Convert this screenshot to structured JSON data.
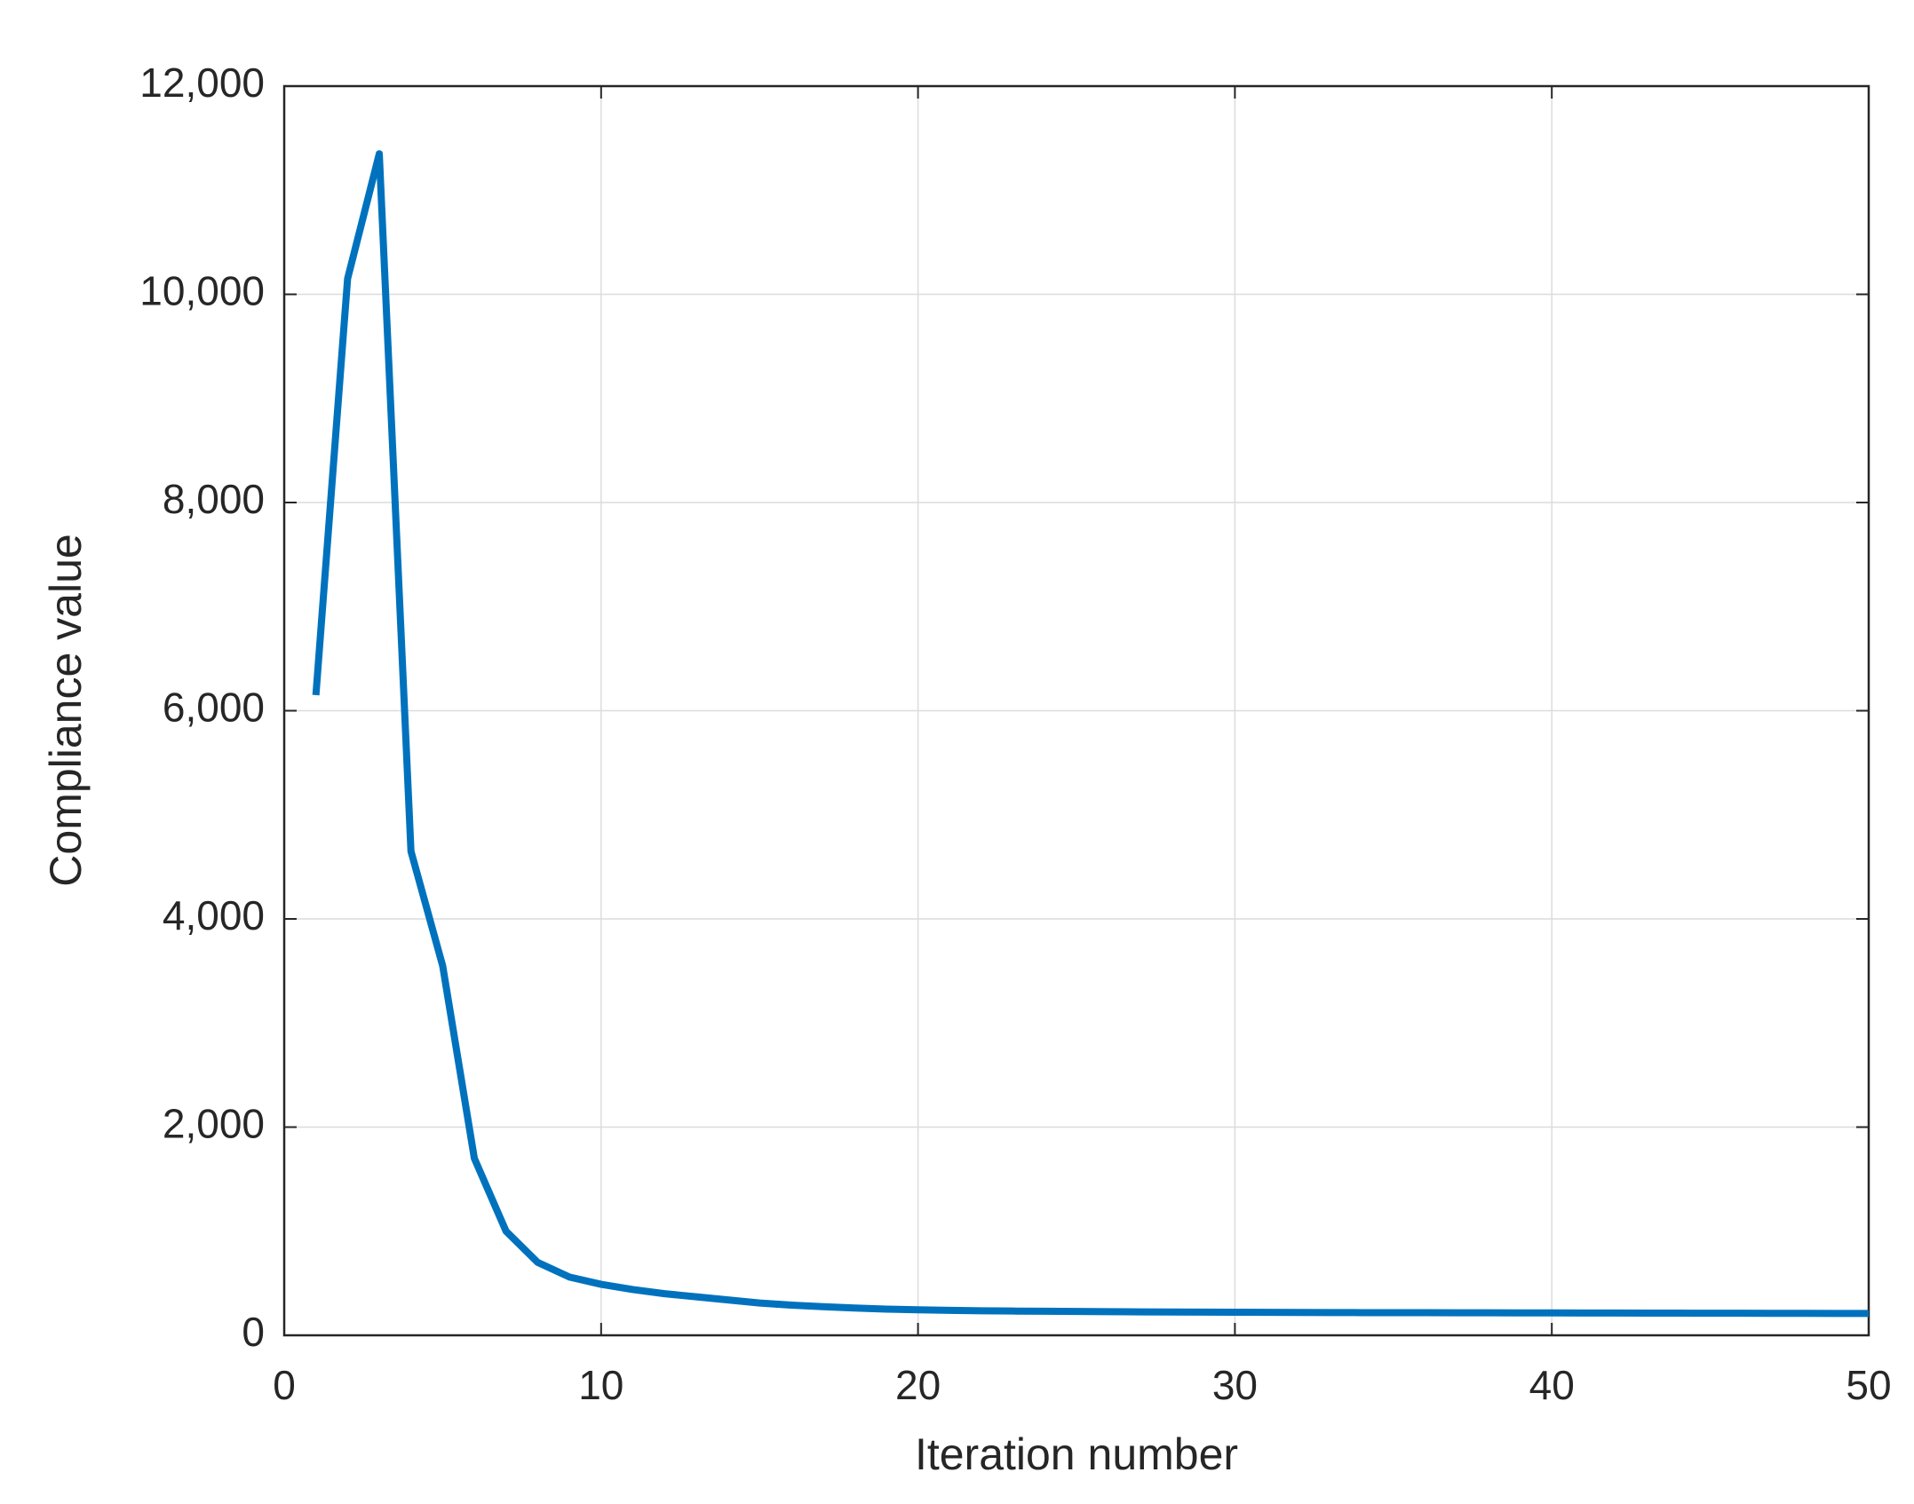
{
  "chart_data": {
    "type": "line",
    "x_label": "Iteration number",
    "y_label": "Compliance value",
    "series": [
      {
        "name": "Compliance",
        "color": "#0072bd",
        "x": [
          1,
          2,
          3,
          4,
          5,
          6,
          7,
          8,
          9,
          10,
          11,
          12,
          13,
          14,
          15,
          16,
          17,
          18,
          19,
          20,
          21,
          22,
          23,
          24,
          25,
          26,
          27,
          28,
          29,
          30,
          31,
          32,
          33,
          34,
          35,
          36,
          37,
          38,
          39,
          40,
          41,
          42,
          43,
          44,
          45,
          46,
          47,
          48,
          49,
          50
        ],
        "values": [
          6150,
          10150,
          11350,
          4650,
          3550,
          1700,
          1000,
          700,
          560,
          490,
          440,
          400,
          370,
          340,
          310,
          290,
          275,
          262,
          252,
          245,
          240,
          236,
          233,
          231,
          229,
          227,
          225,
          224,
          223,
          222,
          221,
          220,
          219,
          218,
          218,
          217,
          216,
          216,
          215,
          215,
          214,
          214,
          213,
          213,
          212,
          212,
          211,
          211,
          210,
          210
        ]
      }
    ],
    "xlim": [
      0,
      50
    ],
    "xticks": [
      0,
      10,
      20,
      30,
      40,
      50
    ],
    "ylim": [
      0,
      12000
    ],
    "yticks": [
      0,
      {
        "value": 2000,
        "label": "2,000"
      },
      {
        "value": 4000,
        "label": "4,000"
      },
      {
        "value": 6000,
        "label": "6,000"
      },
      {
        "value": 8000,
        "label": "8,000"
      },
      {
        "value": 10000,
        "label": "10,000"
      },
      {
        "value": 12000,
        "label": "12,000"
      }
    ],
    "grid": true
  }
}
